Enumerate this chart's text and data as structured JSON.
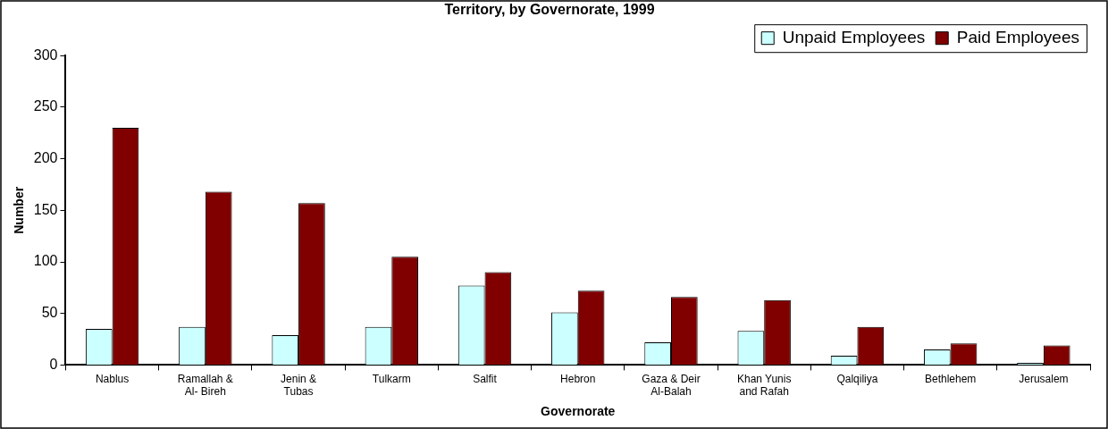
{
  "chart_data": {
    "type": "bar",
    "title": "Territory, by Governorate, 1999",
    "xlabel": "Governorate",
    "ylabel": "Number",
    "categories": [
      "Nablus",
      "Ramallah & Al- Bireh",
      "Jenin & Tubas",
      "Tulkarm",
      "Salfit",
      "Hebron",
      "Gaza & Deir Al-Balah",
      "Khan Yunis and Rafah",
      "Qalqiliya",
      "Bethlehem",
      "Jerusalem"
    ],
    "series": [
      {
        "name": "Unpaid Employees",
        "color": "#ccffff",
        "values": [
          35,
          37,
          29,
          37,
          77,
          51,
          22,
          33,
          9,
          15,
          2
        ]
      },
      {
        "name": "Paid Employees",
        "color": "#800000",
        "values": [
          230,
          168,
          157,
          105,
          90,
          72,
          66,
          63,
          37,
          21,
          19
        ]
      }
    ],
    "ylim": [
      0,
      300
    ],
    "yticks": [
      0,
      50,
      100,
      150,
      200,
      250,
      300
    ],
    "grid": false,
    "legend": "top right"
  }
}
